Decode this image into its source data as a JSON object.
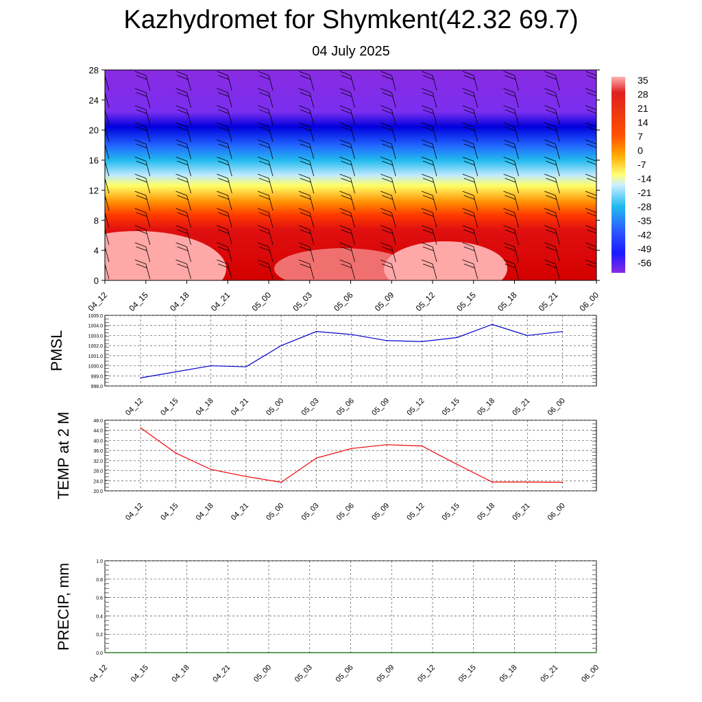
{
  "title": "Kazhydromet for Shymkent(42.32 69.7)",
  "subtitle": "04 July 2025",
  "colorbar": {
    "labels": [
      "35",
      "28",
      "21",
      "14",
      "7",
      "0",
      "-7",
      "-14",
      "-21",
      "-28",
      "-35",
      "-42",
      "-49",
      "-56"
    ]
  },
  "chart_data": [
    {
      "type": "heatmap",
      "name_hint": "temperature vs height with wind barbs",
      "x_ticks": [
        "04_12",
        "04_15",
        "04_18",
        "04_21",
        "05_00",
        "05_03",
        "05_06",
        "05_09",
        "05_12",
        "05_15",
        "05_18",
        "05_21",
        "06_00"
      ],
      "y_ticks": [
        "0",
        "4",
        "8",
        "12",
        "16",
        "20",
        "24",
        "28"
      ],
      "ylim": [
        0,
        28
      ],
      "color_scale": [
        35,
        28,
        21,
        14,
        7,
        0,
        -7,
        -14,
        -21,
        -28,
        -35,
        -42,
        -49,
        -56
      ],
      "colors": {
        "hot": "#ff9999",
        "warm": "#d40000",
        "orange": "#ff7a00",
        "yellow": "#ffff66",
        "cyan": "#22bbee",
        "blue": "#1a1aff",
        "violet": "#8a2be2"
      }
    },
    {
      "type": "line",
      "ylabel": "PMSL",
      "x": [
        "04_12",
        "04_15",
        "04_18",
        "04_21",
        "05_00",
        "05_03",
        "05_06",
        "05_09",
        "05_12",
        "05_15",
        "05_18",
        "05_21",
        "06_00"
      ],
      "y_ticks": [
        "1005.0",
        "1004.0",
        "1003.0",
        "1002.0",
        "1001.0",
        "1000.0",
        "999.0",
        "998.0"
      ],
      "ylim": [
        998.0,
        1005.0
      ],
      "values": [
        998.8,
        999.4,
        1000.0,
        999.9,
        1002.0,
        1003.4,
        1003.1,
        1002.5,
        1002.4,
        1002.8,
        1004.1,
        1003.0,
        1003.4
      ],
      "color": "#0000cc"
    },
    {
      "type": "line",
      "ylabel": "TEMP at 2 M",
      "x": [
        "04_12",
        "04_15",
        "04_18",
        "04_21",
        "05_00",
        "05_03",
        "05_06",
        "05_09",
        "05_12",
        "05_15",
        "05_18",
        "05_21",
        "06_00"
      ],
      "y_ticks": [
        "48.0",
        "44.0",
        "40.0",
        "36.0",
        "32.0",
        "28.0",
        "24.0",
        "20.0"
      ],
      "ylim": [
        20.0,
        48.0
      ],
      "values": [
        45.0,
        35.0,
        28.5,
        25.7,
        23.4,
        33.0,
        36.8,
        38.3,
        37.8,
        30.5,
        23.5,
        23.5,
        23.4
      ],
      "color": "#ee0000"
    },
    {
      "type": "line",
      "ylabel": "PRECIP, mm",
      "x": [
        "04_12",
        "04_15",
        "04_18",
        "04_21",
        "05_00",
        "05_03",
        "05_06",
        "05_09",
        "05_12",
        "05_15",
        "05_18",
        "05_21",
        "06_00"
      ],
      "y_ticks": [
        "1.0",
        "0.8",
        "0.6",
        "0.4",
        "0.2",
        "0.0"
      ],
      "ylim": [
        0.0,
        1.0
      ],
      "values": [
        0,
        0,
        0,
        0,
        0,
        0,
        0,
        0,
        0,
        0,
        0,
        0,
        0
      ],
      "color": "#006600"
    }
  ]
}
